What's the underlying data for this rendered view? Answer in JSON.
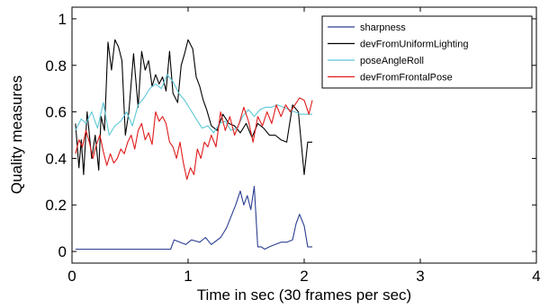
{
  "chart_data": {
    "type": "line",
    "xlabel": "Time in sec (30 frames per sec)",
    "ylabel": "Quality measures",
    "xlim": [
      0,
      4
    ],
    "ylim": [
      -0.05,
      1.05
    ],
    "xticks": [
      0,
      1,
      2,
      3,
      4
    ],
    "yticks": [
      0,
      0.2,
      0.4,
      0.6,
      0.8,
      1
    ],
    "grid": false,
    "legend_position": "top-right",
    "series": [
      {
        "name": "sharpness",
        "color": "#2c3e91",
        "x": [
          0.03,
          0.2,
          0.4,
          0.6,
          0.85,
          0.88,
          0.93,
          0.98,
          1.03,
          1.1,
          1.15,
          1.2,
          1.28,
          1.33,
          1.37,
          1.41,
          1.45,
          1.48,
          1.51,
          1.54,
          1.57,
          1.6,
          1.63,
          1.66,
          1.7,
          1.75,
          1.8,
          1.85,
          1.9,
          1.93,
          1.96,
          2.0,
          2.03,
          2.07
        ],
        "y": [
          0.01,
          0.01,
          0.01,
          0.01,
          0.01,
          0.05,
          0.04,
          0.03,
          0.05,
          0.04,
          0.06,
          0.03,
          0.06,
          0.1,
          0.15,
          0.2,
          0.26,
          0.2,
          0.24,
          0.18,
          0.28,
          0.02,
          0.02,
          0.01,
          0.02,
          0.03,
          0.04,
          0.04,
          0.05,
          0.12,
          0.16,
          0.11,
          0.02,
          0.02
        ]
      },
      {
        "name": "devFromUniformLighting",
        "color": "#000000",
        "x": [
          0.03,
          0.06,
          0.08,
          0.1,
          0.13,
          0.17,
          0.2,
          0.23,
          0.25,
          0.28,
          0.31,
          0.34,
          0.37,
          0.4,
          0.43,
          0.46,
          0.49,
          0.53,
          0.57,
          0.6,
          0.63,
          0.66,
          0.69,
          0.72,
          0.75,
          0.78,
          0.81,
          0.84,
          0.87,
          0.91,
          0.94,
          0.97,
          1.0,
          1.02,
          1.04,
          1.07,
          1.1,
          1.13,
          1.16,
          1.2,
          1.25,
          1.3,
          1.35,
          1.4,
          1.45,
          1.5,
          1.55,
          1.6,
          1.65,
          1.7,
          1.75,
          1.8,
          1.85,
          1.9,
          1.95,
          2.0,
          2.03,
          2.07
        ],
        "y": [
          0.55,
          0.36,
          0.48,
          0.33,
          0.6,
          0.4,
          0.5,
          0.35,
          0.58,
          0.52,
          0.9,
          0.78,
          0.91,
          0.88,
          0.82,
          0.5,
          0.6,
          0.85,
          0.62,
          0.86,
          0.78,
          0.82,
          0.71,
          0.76,
          0.72,
          0.75,
          0.69,
          0.86,
          0.68,
          0.64,
          0.8,
          0.85,
          0.91,
          0.89,
          0.87,
          0.75,
          0.71,
          0.65,
          0.61,
          0.54,
          0.52,
          0.59,
          0.55,
          0.54,
          0.51,
          0.55,
          0.49,
          0.55,
          0.53,
          0.5,
          0.5,
          0.48,
          0.47,
          0.63,
          0.6,
          0.33,
          0.47,
          0.47
        ]
      },
      {
        "name": "poseAngleRoll",
        "color": "#5bc8d6",
        "x": [
          0.03,
          0.08,
          0.12,
          0.17,
          0.22,
          0.27,
          0.32,
          0.37,
          0.42,
          0.47,
          0.52,
          0.57,
          0.62,
          0.67,
          0.72,
          0.77,
          0.82,
          0.87,
          0.92,
          0.97,
          1.02,
          1.07,
          1.12,
          1.17,
          1.22,
          1.27,
          1.32,
          1.37,
          1.42,
          1.47,
          1.52,
          1.57,
          1.62,
          1.67,
          1.72,
          1.77,
          1.82,
          1.87,
          1.92,
          1.97,
          2.02,
          2.07
        ],
        "y": [
          0.52,
          0.57,
          0.55,
          0.6,
          0.53,
          0.64,
          0.5,
          0.54,
          0.56,
          0.6,
          0.54,
          0.63,
          0.66,
          0.7,
          0.72,
          0.7,
          0.76,
          0.73,
          0.68,
          0.65,
          0.61,
          0.57,
          0.53,
          0.54,
          0.51,
          0.55,
          0.56,
          0.52,
          0.53,
          0.58,
          0.61,
          0.58,
          0.61,
          0.62,
          0.62,
          0.63,
          0.62,
          0.61,
          0.6,
          0.59,
          0.59,
          0.59
        ]
      },
      {
        "name": "devFromFrontalPose",
        "color": "#e01b1b",
        "x": [
          0.03,
          0.06,
          0.09,
          0.12,
          0.15,
          0.18,
          0.21,
          0.24,
          0.27,
          0.3,
          0.33,
          0.36,
          0.39,
          0.42,
          0.45,
          0.48,
          0.51,
          0.54,
          0.57,
          0.6,
          0.63,
          0.66,
          0.69,
          0.72,
          0.75,
          0.78,
          0.81,
          0.84,
          0.87,
          0.9,
          0.93,
          0.96,
          0.99,
          1.02,
          1.05,
          1.08,
          1.11,
          1.14,
          1.17,
          1.2,
          1.24,
          1.28,
          1.32,
          1.36,
          1.4,
          1.44,
          1.48,
          1.52,
          1.56,
          1.6,
          1.64,
          1.68,
          1.72,
          1.76,
          1.8,
          1.84,
          1.88,
          1.92,
          1.96,
          2.0,
          2.04,
          2.07
        ],
        "y": [
          0.42,
          0.48,
          0.45,
          0.52,
          0.47,
          0.4,
          0.46,
          0.5,
          0.43,
          0.37,
          0.42,
          0.38,
          0.4,
          0.44,
          0.42,
          0.47,
          0.5,
          0.44,
          0.52,
          0.55,
          0.48,
          0.51,
          0.46,
          0.6,
          0.56,
          0.58,
          0.55,
          0.47,
          0.45,
          0.4,
          0.47,
          0.38,
          0.31,
          0.36,
          0.33,
          0.44,
          0.4,
          0.47,
          0.45,
          0.5,
          0.45,
          0.6,
          0.52,
          0.58,
          0.5,
          0.55,
          0.62,
          0.56,
          0.47,
          0.58,
          0.54,
          0.6,
          0.55,
          0.63,
          0.58,
          0.63,
          0.6,
          0.63,
          0.66,
          0.65,
          0.59,
          0.65
        ]
      }
    ]
  }
}
